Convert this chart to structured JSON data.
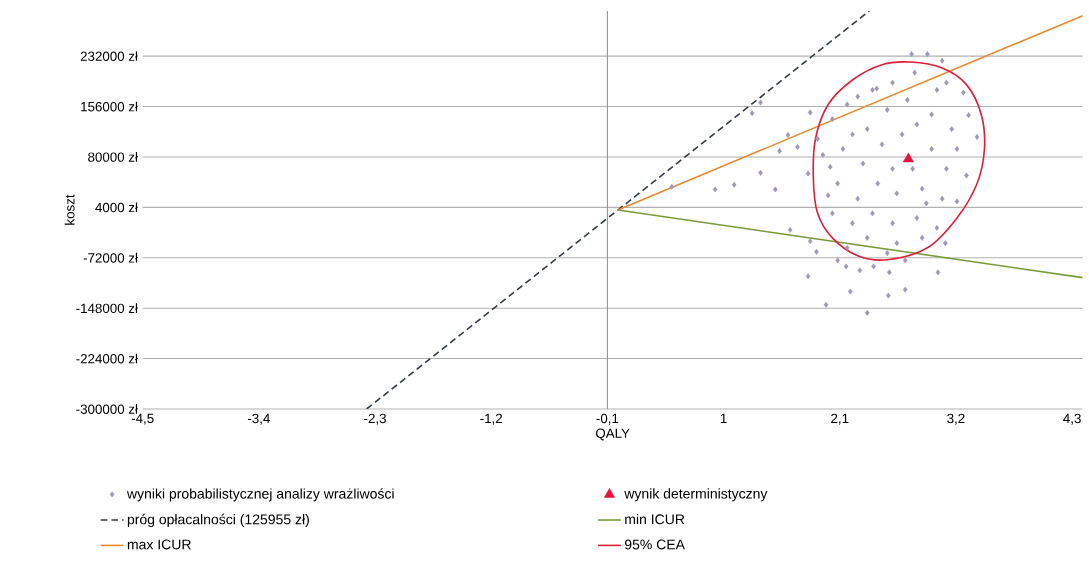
{
  "chart_data": {
    "type": "scatter",
    "xlabel": "QALY",
    "ylabel": "koszt",
    "xlim": [
      -4.5,
      4.4
    ],
    "ylim": [
      -300000,
      300000
    ],
    "xticks": [
      {
        "value": -4.5,
        "label": "-4,5"
      },
      {
        "value": -3.4,
        "label": "-3,4"
      },
      {
        "value": -2.3,
        "label": "-2,3"
      },
      {
        "value": -1.2,
        "label": "-1,2"
      },
      {
        "value": -0.1,
        "label": "-0,1"
      },
      1,
      {
        "value": 2.1,
        "label": "2,1"
      },
      {
        "value": 3.2,
        "label": "3,2"
      },
      {
        "value": 4.3,
        "label": "4,3"
      }
    ],
    "yticks": [
      {
        "value": -300000,
        "label": "-300000 zł"
      },
      {
        "value": -224000,
        "label": "-224000 zł"
      },
      {
        "value": -148000,
        "label": "-148000 zł"
      },
      {
        "value": -72000,
        "label": "-72000 zł"
      },
      {
        "value": 4000,
        "label": "4000 zł"
      },
      {
        "value": 80000,
        "label": "80000 zł"
      },
      {
        "value": 156000,
        "label": "156000 zł"
      },
      {
        "value": 232000,
        "label": "232000 zł"
      }
    ],
    "grid": "y",
    "legend": "bottom",
    "ref_lines": [
      {
        "axis": "x",
        "value": -0.1,
        "color": "#8a8f99"
      }
    ],
    "series": [
      {
        "name": "wyniki probabilistycznej analizy wrażliwości",
        "type": "scatter",
        "marker": "diamond",
        "color": "#a396b5",
        "x": [
          0.51,
          0.92,
          1.1,
          1.35,
          1.49,
          1.27,
          1.35,
          1.53,
          1.7,
          1.82,
          1.61,
          1.8,
          1.63,
          1.82,
          1.88,
          1.8,
          1.97,
          2.36,
          2.2,
          2.56,
          2.72,
          3.03,
          2.08,
          2.16,
          2.29,
          2.42,
          2.57,
          2.72,
          3.1,
          2.78,
          2.93,
          3.07,
          3.27,
          3.4,
          3.32,
          3.3,
          3.21,
          2.45,
          2.6,
          2.81,
          2.27,
          3.11,
          1.99,
          2.01,
          1.94,
          1.89,
          2.03,
          2.17,
          2.36,
          2.55,
          2.74,
          2.97,
          3.16,
          2.13,
          2.32,
          2.5,
          2.97,
          3.11,
          2.08,
          2.27,
          2.46,
          2.64,
          2.88,
          3.07,
          2.03,
          2.22,
          2.41,
          2.6,
          2.83,
          3.02,
          2.36,
          2.64,
          2.88,
          2.55,
          2.79,
          2.6,
          2.41,
          3.02,
          2.22,
          2.83,
          2.69,
          3.21,
          2.92,
          2.17
        ],
        "values": [
          35000,
          31000,
          38000,
          56000,
          31000,
          146000,
          162000,
          89000,
          95000,
          147000,
          113000,
          55000,
          -30000,
          -47000,
          -63000,
          -100000,
          -143000,
          -155000,
          -123000,
          -129000,
          -120000,
          -94000,
          -76000,
          -85000,
          -91000,
          -85000,
          -94000,
          -76000,
          -50000,
          235000,
          235000,
          225000,
          177000,
          110000,
          143000,
          52000,
          13000,
          183000,
          192000,
          207000,
          171000,
          192000,
          22000,
          65000,
          83000,
          107000,
          137000,
          159000,
          122000,
          151000,
          166000,
          144000,
          122000,
          92000,
          70000,
          99000,
          92000,
          62000,
          40000,
          17000,
          40000,
          25000,
          32000,
          17000,
          -5000,
          -20000,
          -5000,
          -20000,
          -12000,
          -27000,
          -42000,
          -50000,
          -42000,
          -65000,
          62000,
          62000,
          181000,
          181000,
          114000,
          129000,
          114000,
          92000,
          10000,
          -57000
        ]
      },
      {
        "name": "wynik deterministyczny",
        "type": "scatter",
        "marker": "triangle",
        "color": "#e8103c",
        "x": [
          2.75
        ],
        "values": [
          77000
        ]
      },
      {
        "name": "próg opłacalności (125955 zł)",
        "type": "line",
        "line_style": "dashed",
        "color": "#333d45",
        "x": [
          -2.38,
          2.38
        ],
        "values": [
          -300000,
          300000
        ]
      },
      {
        "name": "min ICUR",
        "type": "line",
        "color": "#7a9a3c",
        "x": [
          0,
          4.4
        ],
        "values": [
          0,
          -102000
        ]
      },
      {
        "name": "max ICUR",
        "type": "line",
        "color": "#e88a2e",
        "x": [
          0,
          4.4
        ],
        "values": [
          0,
          293000
        ]
      }
    ],
    "annotations": [
      "95% CEA"
    ]
  }
}
